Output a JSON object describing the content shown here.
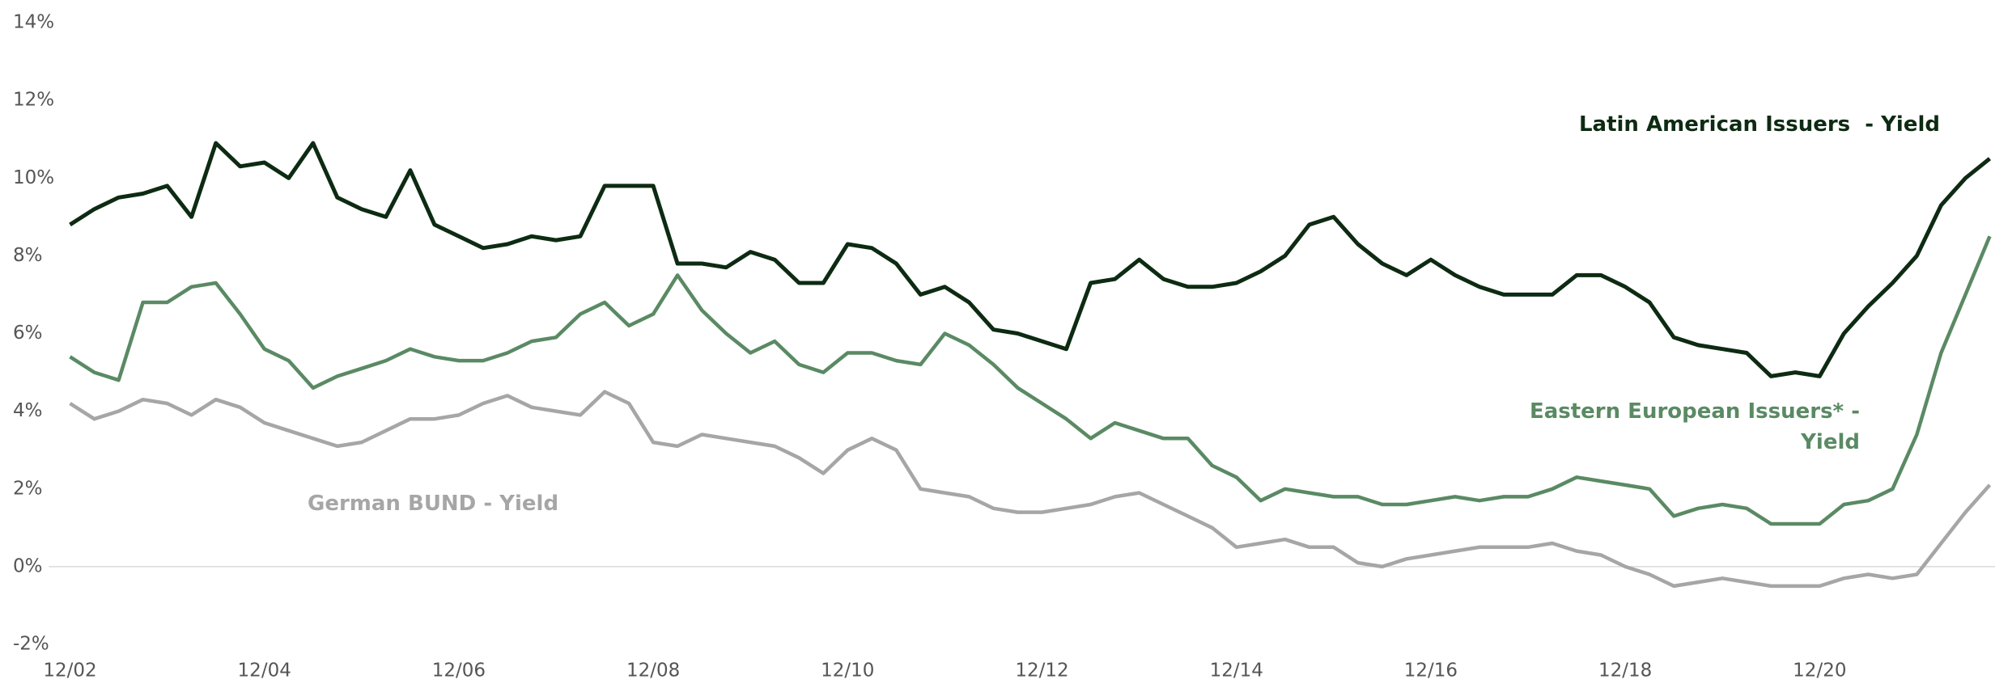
{
  "chart_data": {
    "type": "line",
    "x": [
      "12/02",
      "03/03",
      "06/03",
      "09/03",
      "12/03",
      "03/04",
      "06/04",
      "09/04",
      "12/04",
      "03/05",
      "06/05",
      "09/05",
      "12/05",
      "03/06",
      "06/06",
      "09/06",
      "12/06",
      "03/07",
      "06/07",
      "09/07",
      "12/07",
      "03/08",
      "06/08",
      "09/08",
      "12/08",
      "03/09",
      "06/09",
      "09/09",
      "12/09",
      "03/10",
      "06/10",
      "09/10",
      "12/10",
      "03/11",
      "06/11",
      "09/11",
      "12/11",
      "03/12",
      "06/12",
      "09/12",
      "12/12",
      "03/13",
      "06/13",
      "09/13",
      "12/13",
      "03/14",
      "06/14",
      "09/14",
      "12/14",
      "03/15",
      "06/15",
      "09/15",
      "12/15",
      "03/16",
      "06/16",
      "09/16",
      "12/16",
      "03/17",
      "06/17",
      "09/17",
      "12/17",
      "03/18",
      "06/18",
      "09/18",
      "12/18",
      "03/19",
      "06/19",
      "09/19",
      "12/19",
      "03/20",
      "06/20",
      "09/20",
      "12/20",
      "03/21",
      "06/21",
      "09/21",
      "12/21",
      "03/22",
      "06/22",
      "09/22"
    ],
    "xlim": [
      "12/02",
      "09/22"
    ],
    "xticks": [
      "12/02",
      "12/04",
      "12/06",
      "12/08",
      "12/10",
      "12/12",
      "12/14",
      "12/16",
      "12/18",
      "12/20"
    ],
    "ylim": [
      -2,
      14
    ],
    "yticks": [
      {
        "value": -2,
        "label": "-2%"
      },
      {
        "value": 0,
        "label": "0%"
      },
      {
        "value": 2,
        "label": "2%"
      },
      {
        "value": 4,
        "label": "4%"
      },
      {
        "value": 6,
        "label": "6%"
      },
      {
        "value": 8,
        "label": "8%"
      },
      {
        "value": 10,
        "label": "10%"
      },
      {
        "value": 12,
        "label": "12%"
      },
      {
        "value": 14,
        "label": "14%"
      }
    ],
    "grid": false,
    "zero_line": true,
    "series": [
      {
        "name": "Latin American Issuers  - Yield",
        "color": "#0d2b12",
        "values": [
          8.8,
          9.2,
          9.5,
          9.6,
          9.8,
          9.0,
          10.9,
          10.3,
          10.4,
          10.0,
          10.9,
          9.5,
          9.2,
          9.0,
          10.2,
          8.8,
          8.5,
          8.2,
          8.3,
          8.5,
          8.4,
          8.5,
          9.8,
          9.8,
          9.8,
          7.8,
          7.8,
          7.7,
          8.1,
          7.9,
          7.3,
          7.3,
          8.3,
          8.2,
          7.8,
          7.0,
          7.2,
          6.8,
          6.1,
          6.0,
          5.8,
          5.6,
          7.3,
          7.4,
          7.9,
          7.4,
          7.2,
          7.2,
          7.3,
          7.6,
          8.0,
          8.8,
          9.0,
          8.3,
          7.8,
          7.5,
          7.9,
          7.5,
          7.2,
          7.0,
          7.0,
          7.0,
          7.5,
          7.5,
          7.2,
          6.8,
          5.9,
          5.7,
          5.6,
          5.5,
          4.9,
          5.0,
          4.9,
          6.0,
          6.7,
          7.3,
          8.0,
          9.3,
          10.0,
          10.5
        ]
      },
      {
        "name": "Eastern European Issuers* - Yield",
        "color": "#5a8a64",
        "values": [
          5.4,
          5.0,
          4.8,
          6.8,
          6.8,
          7.2,
          7.3,
          6.5,
          5.6,
          5.3,
          4.6,
          4.9,
          5.1,
          5.3,
          5.6,
          5.4,
          5.3,
          5.3,
          5.5,
          5.8,
          5.9,
          6.5,
          6.8,
          6.2,
          6.5,
          7.5,
          6.6,
          6.0,
          5.5,
          5.8,
          5.2,
          5.0,
          5.5,
          5.5,
          5.3,
          5.2,
          6.0,
          5.7,
          5.2,
          4.6,
          4.2,
          3.8,
          3.3,
          3.7,
          3.5,
          3.3,
          3.3,
          2.6,
          2.3,
          1.7,
          2.0,
          1.9,
          1.8,
          1.8,
          1.6,
          1.6,
          1.7,
          1.8,
          1.7,
          1.8,
          1.8,
          2.0,
          2.3,
          2.2,
          2.1,
          2.0,
          1.3,
          1.5,
          1.6,
          1.5,
          1.1,
          1.1,
          1.1,
          1.6,
          1.7,
          2.0,
          3.4,
          5.5,
          7.0,
          8.5
        ]
      },
      {
        "name": "German BUND - Yield",
        "color": "#a6a6a6",
        "values": [
          4.2,
          3.8,
          4.0,
          4.3,
          4.2,
          3.9,
          4.3,
          4.1,
          3.7,
          3.5,
          3.3,
          3.1,
          3.2,
          3.5,
          3.8,
          3.8,
          3.9,
          4.2,
          4.4,
          4.1,
          4.0,
          3.9,
          4.5,
          4.2,
          3.2,
          3.1,
          3.4,
          3.3,
          3.2,
          3.1,
          2.8,
          2.4,
          3.0,
          3.3,
          3.0,
          2.0,
          1.9,
          1.8,
          1.5,
          1.4,
          1.4,
          1.5,
          1.6,
          1.8,
          1.9,
          1.6,
          1.3,
          1.0,
          0.5,
          0.6,
          0.7,
          0.5,
          0.5,
          0.1,
          0.0,
          0.2,
          0.3,
          0.4,
          0.5,
          0.5,
          0.5,
          0.6,
          0.4,
          0.3,
          0.0,
          -0.2,
          -0.5,
          -0.4,
          -0.3,
          -0.4,
          -0.5,
          -0.5,
          -0.5,
          -0.3,
          -0.2,
          -0.3,
          -0.2,
          0.6,
          1.4,
          2.1
        ]
      }
    ]
  }
}
